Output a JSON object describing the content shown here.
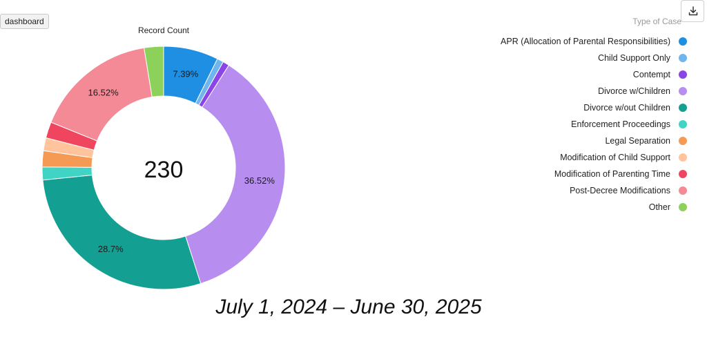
{
  "toolbar": {
    "tag_label": "dashboard"
  },
  "chart_data": {
    "type": "pie",
    "title": "Record Count",
    "center_total": "230",
    "legend_title": "Type of Case",
    "slices": [
      {
        "name": "APR (Allocation of Parental Responsibilities)",
        "value": 7.39,
        "label": "7.39%",
        "color": "#1f8fe3"
      },
      {
        "name": "Child Support Only",
        "value": 0.87,
        "label": "",
        "color": "#6fb5ee"
      },
      {
        "name": "Contempt",
        "value": 0.87,
        "label": "",
        "color": "#8b44e6"
      },
      {
        "name": "Divorce w/Children",
        "value": 36.52,
        "label": "36.52%",
        "color": "#b78eef"
      },
      {
        "name": "Divorce w/out Children",
        "value": 28.7,
        "label": "28.7%",
        "color": "#13a092"
      },
      {
        "name": "Enforcement Proceedings",
        "value": 1.74,
        "label": "",
        "color": "#3fd4c4"
      },
      {
        "name": "Legal Separation",
        "value": 2.17,
        "label": "",
        "color": "#f59a55"
      },
      {
        "name": "Modification of Child Support",
        "value": 1.74,
        "label": "",
        "color": "#ffc49c"
      },
      {
        "name": "Modification of Parenting Time",
        "value": 2.17,
        "label": "",
        "color": "#f0455f"
      },
      {
        "name": "Post-Decree Modifications",
        "value": 16.52,
        "label": "16.52%",
        "color": "#f58a97"
      },
      {
        "name": "Other",
        "value": 2.61,
        "label": "",
        "color": "#8cd25a"
      }
    ]
  },
  "footer": {
    "date_range": "July 1, 2024 – June 30, 2025"
  },
  "icons": {
    "download": "download-icon"
  }
}
